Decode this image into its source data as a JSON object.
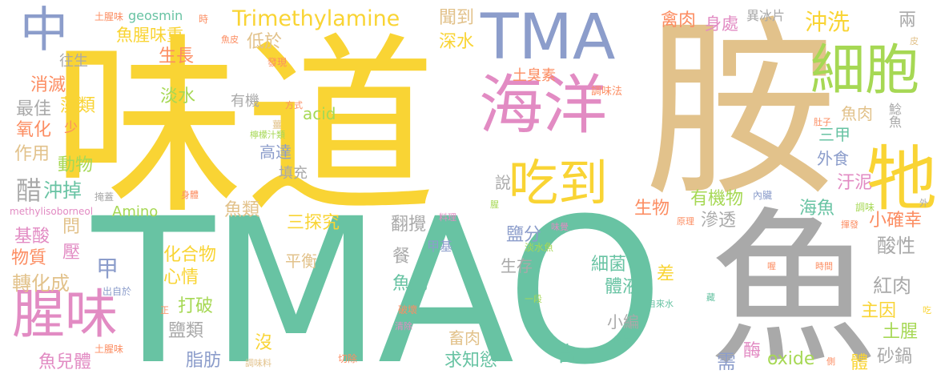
{
  "palette": {
    "yellow": "#f9d434",
    "teal": "#68c3a3",
    "tan": "#e2c28b",
    "gray": "#a9a9a9",
    "blue": "#8c9dcb",
    "pink": "#e28bc3",
    "green": "#a6d854",
    "orange": "#fc8d62"
  },
  "words": [
    {
      "id": "w01",
      "text": "TMAO",
      "color": "teal"
    },
    {
      "id": "w02",
      "text": "味道",
      "color": "yellow"
    },
    {
      "id": "w03",
      "text": "胺",
      "color": "tan"
    },
    {
      "id": "w04",
      "text": "魚",
      "color": "gray"
    },
    {
      "id": "w05",
      "text": "TMA",
      "color": "blue"
    },
    {
      "id": "w06",
      "text": "海洋",
      "color": "pink"
    },
    {
      "id": "w07",
      "text": "細胞",
      "color": "green"
    },
    {
      "id": "w08",
      "text": "腥味",
      "color": "pink"
    },
    {
      "id": "w09",
      "text": "牠",
      "color": "yellow"
    },
    {
      "id": "w10",
      "text": "吃到",
      "color": "yellow"
    },
    {
      "id": "w11",
      "text": "中",
      "color": "blue"
    },
    {
      "id": "w12",
      "text": "Trimethylamine",
      "color": "yellow"
    },
    {
      "id": "w13",
      "text": "魚腥味重",
      "color": "yellow"
    },
    {
      "id": "w14",
      "text": "沖洗",
      "color": "yellow"
    },
    {
      "id": "w15",
      "text": "聞到",
      "color": "tan"
    },
    {
      "id": "w16",
      "text": "禽肉",
      "color": "orange"
    },
    {
      "id": "w17",
      "text": "身處",
      "color": "pink"
    },
    {
      "id": "w18",
      "text": "異冰片",
      "color": "gray"
    },
    {
      "id": "w19",
      "text": "geosmin",
      "color": "teal"
    },
    {
      "id": "w20",
      "text": "土腥味",
      "color": "orange"
    },
    {
      "id": "w21",
      "text": "時",
      "color": "orange"
    },
    {
      "id": "w22",
      "text": "低於",
      "color": "tan"
    },
    {
      "id": "w23",
      "text": "生長",
      "color": "orange"
    },
    {
      "id": "w24",
      "text": "深水",
      "color": "yellow"
    },
    {
      "id": "w25",
      "text": "往生",
      "color": "gray"
    },
    {
      "id": "w26",
      "text": "消滅",
      "color": "orange"
    },
    {
      "id": "w27",
      "text": "藻類",
      "color": "yellow"
    },
    {
      "id": "w28",
      "text": "最佳",
      "color": "gray"
    },
    {
      "id": "w29",
      "text": "氧化",
      "color": "orange"
    },
    {
      "id": "w30",
      "text": "少",
      "color": "orange"
    },
    {
      "id": "w31",
      "text": "作用",
      "color": "tan"
    },
    {
      "id": "w32",
      "text": "動物",
      "color": "green"
    },
    {
      "id": "w33",
      "text": "淡水",
      "color": "green"
    },
    {
      "id": "w34",
      "text": "有機",
      "color": "gray"
    },
    {
      "id": "w35",
      "text": "acid",
      "color": "green"
    },
    {
      "id": "w36",
      "text": "土臭素",
      "color": "orange"
    },
    {
      "id": "w37",
      "text": "調味法",
      "color": "orange"
    },
    {
      "id": "w38",
      "text": "高達",
      "color": "blue"
    },
    {
      "id": "w39",
      "text": "填充",
      "color": "gray"
    },
    {
      "id": "w40",
      "text": "魚肉",
      "color": "tan"
    },
    {
      "id": "w41",
      "text": "鯰魚",
      "color": "gray"
    },
    {
      "id": "w42",
      "text": "三甲",
      "color": "teal"
    },
    {
      "id": "w43",
      "text": "外食",
      "color": "blue"
    },
    {
      "id": "w44",
      "text": "醋",
      "color": "gray"
    },
    {
      "id": "w45",
      "text": "沖掉",
      "color": "teal"
    },
    {
      "id": "w46",
      "text": "Amino",
      "color": "green"
    },
    {
      "id": "w47",
      "text": "魚類",
      "color": "tan"
    },
    {
      "id": "w48",
      "text": "三探究",
      "color": "yellow"
    },
    {
      "id": "w49",
      "text": "說",
      "color": "gray"
    },
    {
      "id": "w50",
      "text": "有機物",
      "color": "green"
    },
    {
      "id": "w51",
      "text": "生物",
      "color": "orange"
    },
    {
      "id": "w52",
      "text": "汙泥",
      "color": "pink"
    },
    {
      "id": "w53",
      "text": "海魚",
      "color": "teal"
    },
    {
      "id": "w54",
      "text": "滲透",
      "color": "gray"
    },
    {
      "id": "w55",
      "text": "小確幸",
      "color": "orange"
    },
    {
      "id": "w56",
      "text": "酸性",
      "color": "gray"
    },
    {
      "id": "w57",
      "text": "基酸",
      "color": "pink"
    },
    {
      "id": "w58",
      "text": "物質",
      "color": "orange"
    },
    {
      "id": "w59",
      "text": "問",
      "color": "tan"
    },
    {
      "id": "w60",
      "text": "壓",
      "color": "pink"
    },
    {
      "id": "w61",
      "text": "轉化成",
      "color": "tan"
    },
    {
      "id": "w62",
      "text": "甲",
      "color": "blue"
    },
    {
      "id": "w63",
      "text": "化合物",
      "color": "yellow"
    },
    {
      "id": "w64",
      "text": "心情",
      "color": "yellow"
    },
    {
      "id": "w65",
      "text": "平衡",
      "color": "tan"
    },
    {
      "id": "w66",
      "text": "翻攪",
      "color": "gray"
    },
    {
      "id": "w67",
      "text": "餐",
      "color": "gray"
    },
    {
      "id": "w68",
      "text": "鹽分",
      "color": "blue"
    },
    {
      "id": "w69",
      "text": "生存",
      "color": "gray"
    },
    {
      "id": "w70",
      "text": "細菌",
      "color": "teal"
    },
    {
      "id": "w71",
      "text": "體液",
      "color": "teal"
    },
    {
      "id": "w72",
      "text": "差",
      "color": "yellow"
    },
    {
      "id": "w73",
      "text": "紅肉",
      "color": "gray"
    },
    {
      "id": "w74",
      "text": "主因",
      "color": "yellow"
    },
    {
      "id": "w75",
      "text": "土腥",
      "color": "green"
    },
    {
      "id": "w76",
      "text": "魚兒",
      "color": "teal"
    },
    {
      "id": "w77",
      "text": "小編",
      "color": "gray"
    },
    {
      "id": "w78",
      "text": "打破",
      "color": "green"
    },
    {
      "id": "w79",
      "text": "鹽類",
      "color": "gray"
    },
    {
      "id": "w80",
      "text": "脂肪",
      "color": "blue"
    },
    {
      "id": "w81",
      "text": "沒",
      "color": "yellow"
    },
    {
      "id": "w82",
      "text": "畜肉",
      "color": "tan"
    },
    {
      "id": "w83",
      "text": "求知慾",
      "color": "teal"
    },
    {
      "id": "w84",
      "text": "含",
      "color": "teal"
    },
    {
      "id": "w85",
      "text": "需",
      "color": "blue"
    },
    {
      "id": "w86",
      "text": "酶",
      "color": "pink"
    },
    {
      "id": "w87",
      "text": "oxide",
      "color": "green"
    },
    {
      "id": "w88",
      "text": "體",
      "color": "yellow"
    },
    {
      "id": "w89",
      "text": "砂鍋",
      "color": "gray"
    },
    {
      "id": "w90",
      "text": "魚兒體",
      "color": "pink"
    },
    {
      "id": "w91",
      "text": "兩",
      "color": "gray"
    },
    {
      "id": "w92",
      "text": "魚皮",
      "color": "orange"
    },
    {
      "id": "w93",
      "text": "發現",
      "color": "orange"
    },
    {
      "id": "w94",
      "text": "方式",
      "color": "orange"
    },
    {
      "id": "w95",
      "text": "薑",
      "color": "tan"
    },
    {
      "id": "w96",
      "text": "檸檬汁類",
      "color": "green"
    },
    {
      "id": "w97",
      "text": "掩蓋",
      "color": "gray"
    },
    {
      "id": "w98",
      "text": "身體",
      "color": "orange"
    },
    {
      "id": "w99",
      "text": "methylisoborneol",
      "color": "pink"
    },
    {
      "id": "w100",
      "text": "料理",
      "color": "pink"
    },
    {
      "id": "w101",
      "text": "腥",
      "color": "green"
    },
    {
      "id": "w102",
      "text": "內臟",
      "color": "blue"
    },
    {
      "id": "w103",
      "text": "甲基",
      "color": "blue"
    },
    {
      "id": "w104",
      "text": "淡水魚",
      "color": "green"
    },
    {
      "id": "w105",
      "text": "味覺",
      "color": "pink"
    },
    {
      "id": "w106",
      "text": "原理",
      "color": "orange"
    },
    {
      "id": "w107",
      "text": "調味",
      "color": "green"
    },
    {
      "id": "w108",
      "text": "揮發",
      "color": "orange"
    },
    {
      "id": "w109",
      "text": "外",
      "color": "gray"
    },
    {
      "id": "w110",
      "text": "肚子",
      "color": "orange"
    },
    {
      "id": "w111",
      "text": "皮",
      "color": "tan"
    },
    {
      "id": "w112",
      "text": "出自於",
      "color": "blue"
    },
    {
      "id": "w113",
      "text": "正",
      "color": "orange"
    },
    {
      "id": "w114",
      "text": "一段",
      "color": "green"
    },
    {
      "id": "w115",
      "text": "破壞",
      "color": "orange"
    },
    {
      "id": "w116",
      "text": "清除",
      "color": "pink"
    },
    {
      "id": "w117",
      "text": "自來水",
      "color": "teal"
    },
    {
      "id": "w118",
      "text": "檸檬",
      "color": "teal"
    },
    {
      "id": "w119",
      "text": "喔",
      "color": "orange"
    },
    {
      "id": "w120",
      "text": "時間",
      "color": "orange"
    },
    {
      "id": "w121",
      "text": "藏",
      "color": "teal"
    },
    {
      "id": "w122",
      "text": "吃",
      "color": "yellow"
    },
    {
      "id": "w123",
      "text": "切除",
      "color": "orange"
    },
    {
      "id": "w124",
      "text": "調味料",
      "color": "tan"
    },
    {
      "id": "w125",
      "text": "土腥味",
      "color": "orange"
    },
    {
      "id": "w126",
      "text": "側",
      "color": "orange"
    }
  ]
}
